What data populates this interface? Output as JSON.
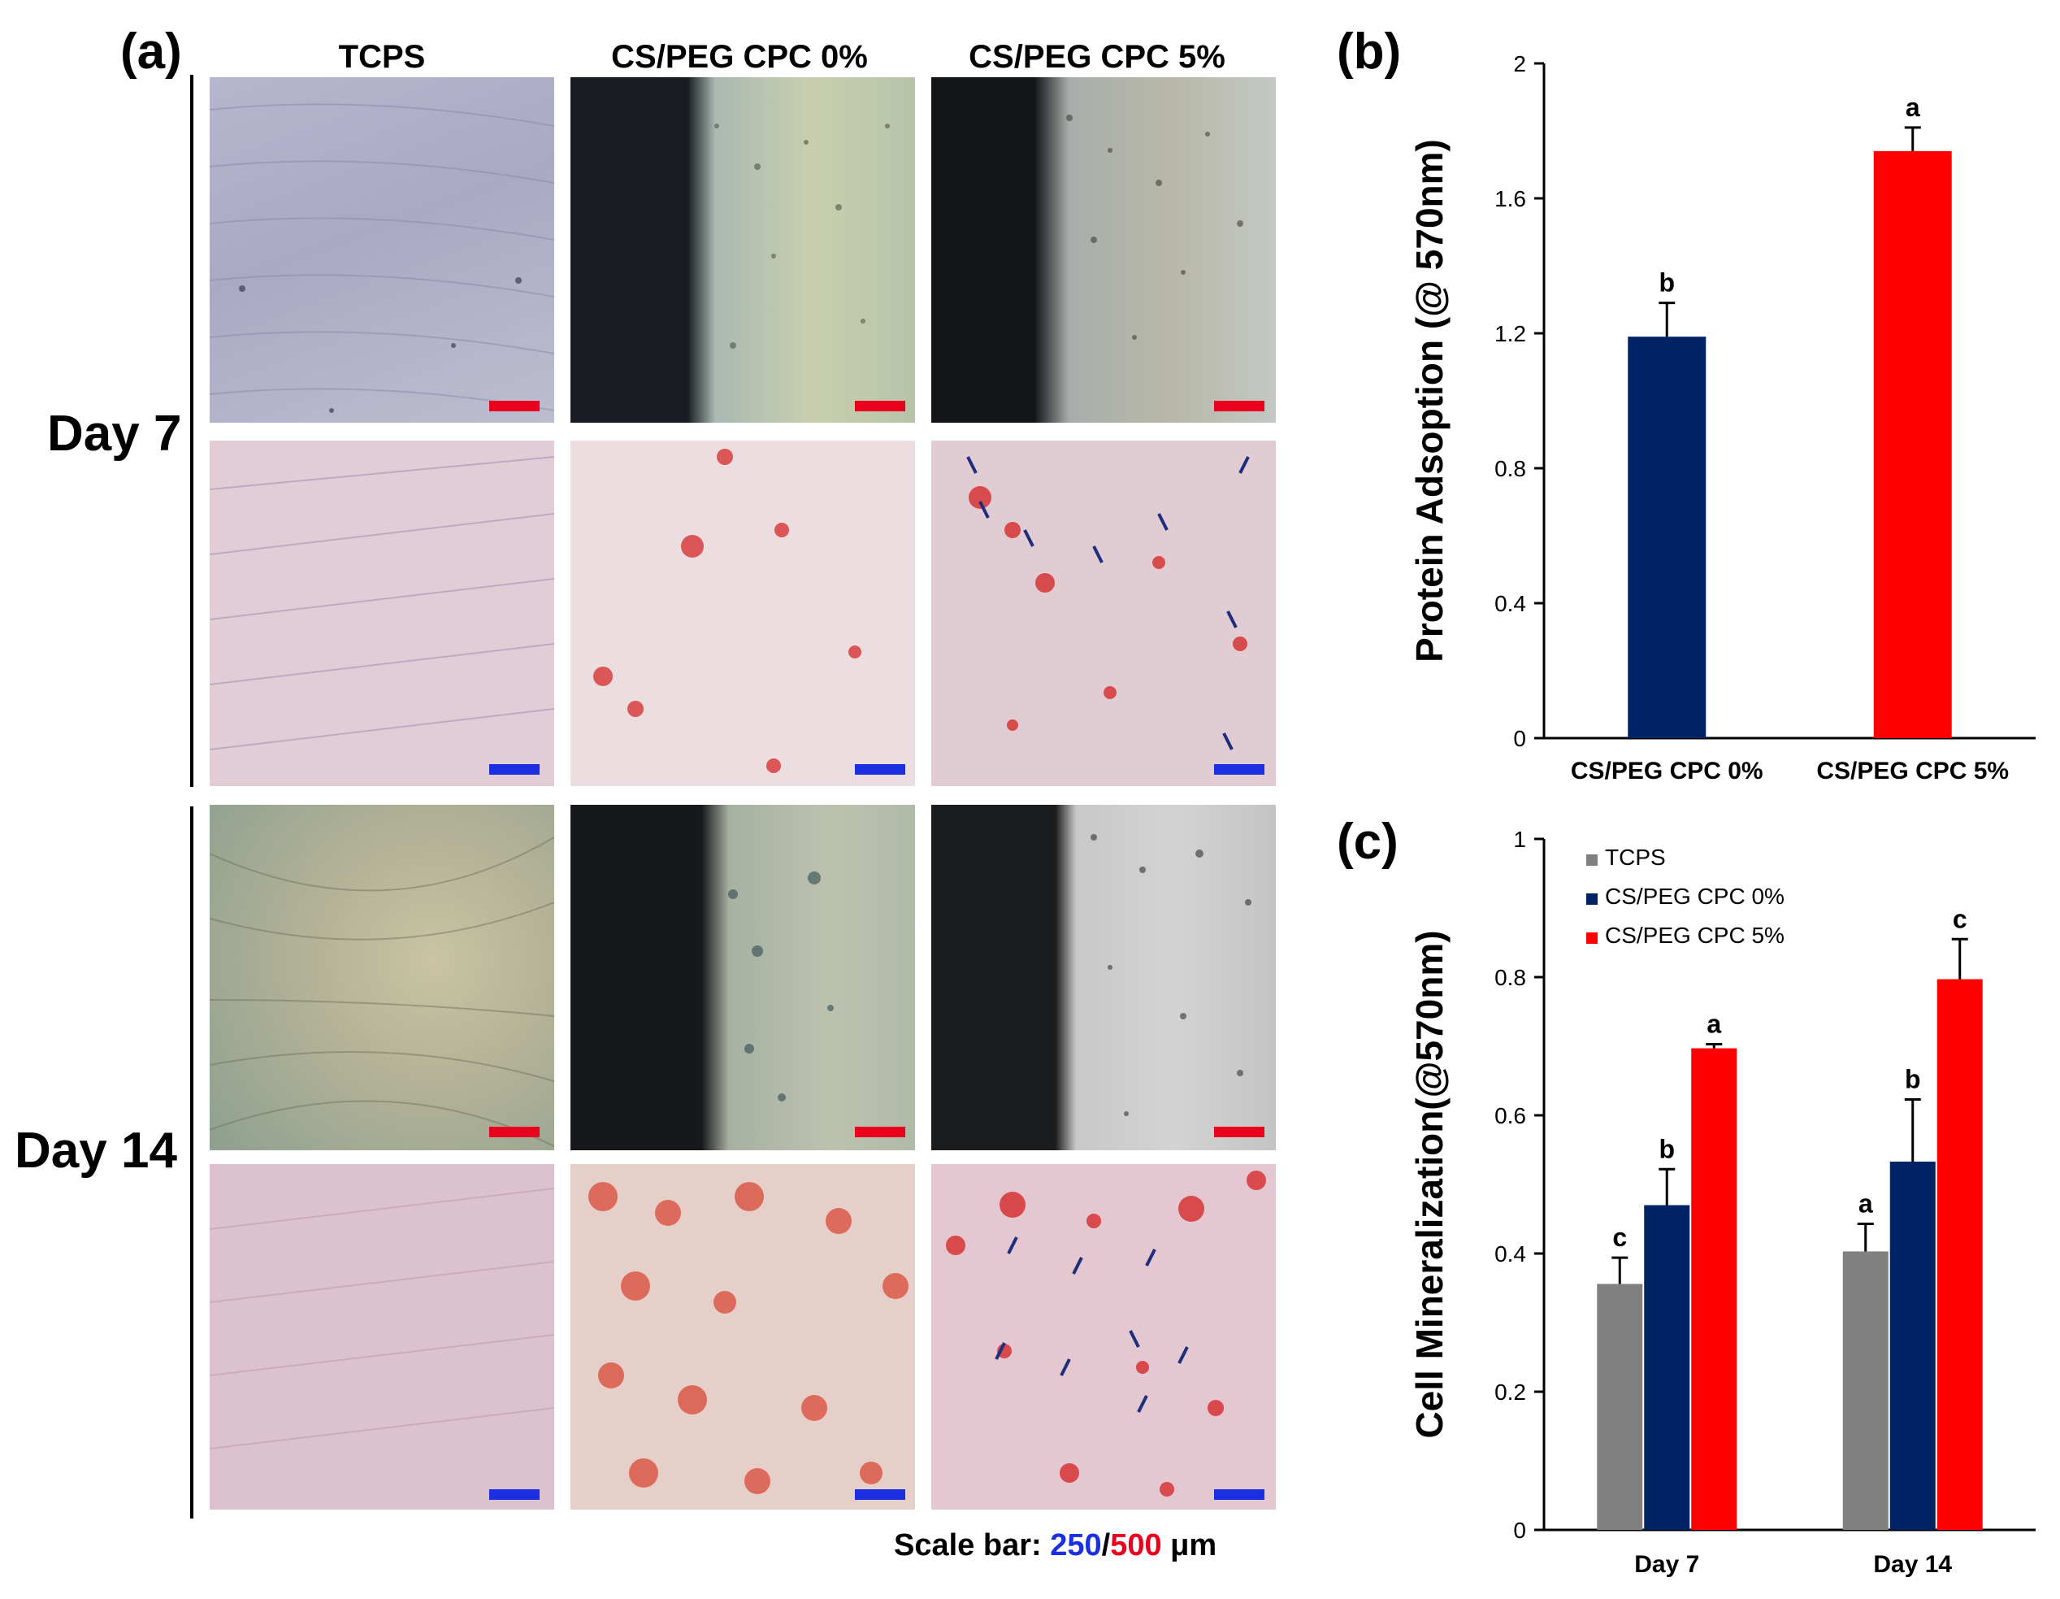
{
  "panel_a": {
    "label": "(a)",
    "columns": [
      "TCPS",
      "CS/PEG CPC 0%",
      "CS/PEG CPC 5%"
    ],
    "rows": [
      "Day 7",
      "Day 14"
    ],
    "scale_note": {
      "prefix": "Scale bar: ",
      "blue_value": "250",
      "separator": "/",
      "red_value": "500",
      "unit": " μm"
    },
    "colors": {
      "scale_blue": "#1a2fe0",
      "scale_red": "#e8001c",
      "stain_red": "#d62a2a",
      "arrow_blue": "#1d2f7a"
    }
  },
  "chart_data": [
    {
      "panel": "(b)",
      "type": "bar",
      "categories": [
        "CS/PEG CPC 0%",
        "CS/PEG CPC 5%"
      ],
      "values": [
        1.19,
        1.74
      ],
      "errors": [
        0.1,
        0.07
      ],
      "sig_letters": [
        "b",
        "a"
      ],
      "colors": [
        "#002366",
        "#ff0000"
      ],
      "title": "",
      "xlabel": "",
      "ylabel": "Protein Adsoption (@ 570nm)",
      "ylim": [
        0,
        2
      ],
      "yticks": [
        "0",
        "0.4",
        "0.8",
        "1.2",
        "1.6",
        "2"
      ],
      "grid": false
    },
    {
      "panel": "(c)",
      "type": "bar",
      "categories": [
        "Day 7",
        "Day 14"
      ],
      "series": [
        {
          "name": "TCPS",
          "color": "#808080",
          "values": [
            0.356,
            0.403
          ],
          "errors": [
            0.038,
            0.04
          ],
          "sig_letters": [
            "c",
            "a"
          ]
        },
        {
          "name": "CS/PEG CPC 0%",
          "color": "#002366",
          "values": [
            0.47,
            0.533
          ],
          "errors": [
            0.052,
            0.09
          ],
          "sig_letters": [
            "b",
            "b"
          ]
        },
        {
          "name": "CS/PEG CPC 5%",
          "color": "#ff0000",
          "values": [
            0.697,
            0.797
          ],
          "errors": [
            0.006,
            0.058
          ],
          "sig_letters": [
            "a",
            "c"
          ]
        }
      ],
      "title": "",
      "xlabel": "",
      "ylabel": "Cell Mineralization(@570nm)",
      "ylim": [
        0,
        1
      ],
      "yticks": [
        "0",
        "0.2",
        "0.4",
        "0.6",
        "0.8",
        "1"
      ],
      "legend": "top-left",
      "grid": false
    }
  ]
}
